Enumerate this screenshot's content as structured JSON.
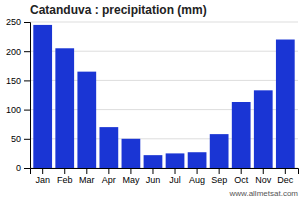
{
  "chart_data": {
    "type": "bar",
    "title": "Catanduva : precipitation (mm)",
    "categories": [
      "Jan",
      "Feb",
      "Mar",
      "Apr",
      "May",
      "Jun",
      "Jul",
      "Aug",
      "Sep",
      "Oct",
      "Nov",
      "Dec"
    ],
    "values": [
      245,
      205,
      165,
      70,
      50,
      22,
      25,
      27,
      58,
      113,
      133,
      220
    ],
    "color": "#1a35d4",
    "ylim": [
      0,
      250
    ],
    "yticks": [
      0,
      50,
      100,
      150,
      200,
      250
    ],
    "grid": true,
    "annotations": [
      "www.allmetsat.com"
    ]
  }
}
